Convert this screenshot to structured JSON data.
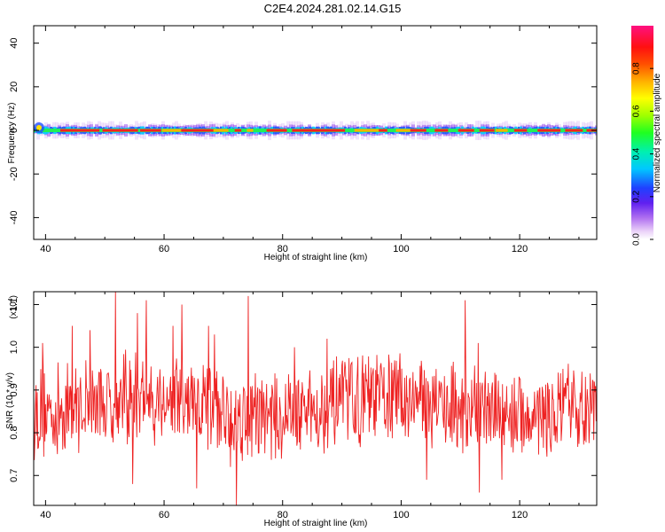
{
  "title": "C2E4.2024.281.02.14.G15",
  "chart_data": [
    {
      "type": "heatmap",
      "xlabel": "Height of straight line (km)",
      "ylabel": "Frequency (Hz)",
      "xlim": [
        38,
        133
      ],
      "ylim": [
        -50,
        48
      ],
      "xticks": [
        40,
        60,
        80,
        100,
        120
      ],
      "yticks": [
        -40,
        -20,
        0,
        20,
        40
      ],
      "grid": false,
      "colorbar": {
        "label": "Normalized spectral amplitude",
        "range": [
          0,
          1
        ],
        "ticks": [
          0.0,
          0.2,
          0.4,
          0.6,
          0.8
        ],
        "colormap": "rainbow (magenta-purple-blue-cyan-green-yellow-red-pink)"
      },
      "description_values": {
        "signal_frequency_hz": 0,
        "peak_amplitude_band": [
          0.8,
          1.0
        ],
        "halo_amplitude_band": [
          0.05,
          0.4
        ]
      }
    },
    {
      "type": "line",
      "xlabel": "Height of straight line (km)",
      "ylabel": "SNR (10 * v/v)",
      "y_multiplier_label": "(x10",
      "y_multiplier_exp": "4",
      "xlim": [
        38,
        133
      ],
      "ylim": [
        0.63,
        1.13
      ],
      "xticks": [
        40,
        60,
        80,
        100,
        120
      ],
      "yticks": [
        0.7,
        0.8,
        0.9,
        1.0,
        1.1
      ],
      "grid": false,
      "series_color": "#ee2222",
      "x_start": 38,
      "x_end": 133,
      "samples_per_km": 10,
      "peaks": [
        {
          "x": 39.5,
          "y": 1.01
        },
        {
          "x": 44.5,
          "y": 1.05
        },
        {
          "x": 47.5,
          "y": 1.04
        },
        {
          "x": 51.8,
          "y": 1.13
        },
        {
          "x": 55.5,
          "y": 1.08
        },
        {
          "x": 57.0,
          "y": 1.11
        },
        {
          "x": 61.5,
          "y": 1.05
        },
        {
          "x": 63.0,
          "y": 1.1
        },
        {
          "x": 67.5,
          "y": 1.05
        },
        {
          "x": 68.5,
          "y": 1.03
        },
        {
          "x": 74.2,
          "y": 1.12
        },
        {
          "x": 82.0,
          "y": 1.0
        },
        {
          "x": 87.5,
          "y": 1.02
        },
        {
          "x": 110.8,
          "y": 1.11
        },
        {
          "x": 113.0,
          "y": 1.01
        }
      ],
      "troughs": [
        {
          "x": 42.0,
          "y": 0.75
        },
        {
          "x": 54.7,
          "y": 0.68
        },
        {
          "x": 65.5,
          "y": 0.67
        },
        {
          "x": 71.2,
          "y": 0.72
        },
        {
          "x": 72.2,
          "y": 0.63
        },
        {
          "x": 104.3,
          "y": 0.69
        },
        {
          "x": 113.2,
          "y": 0.66
        },
        {
          "x": 117.0,
          "y": 0.69
        }
      ]
    }
  ]
}
